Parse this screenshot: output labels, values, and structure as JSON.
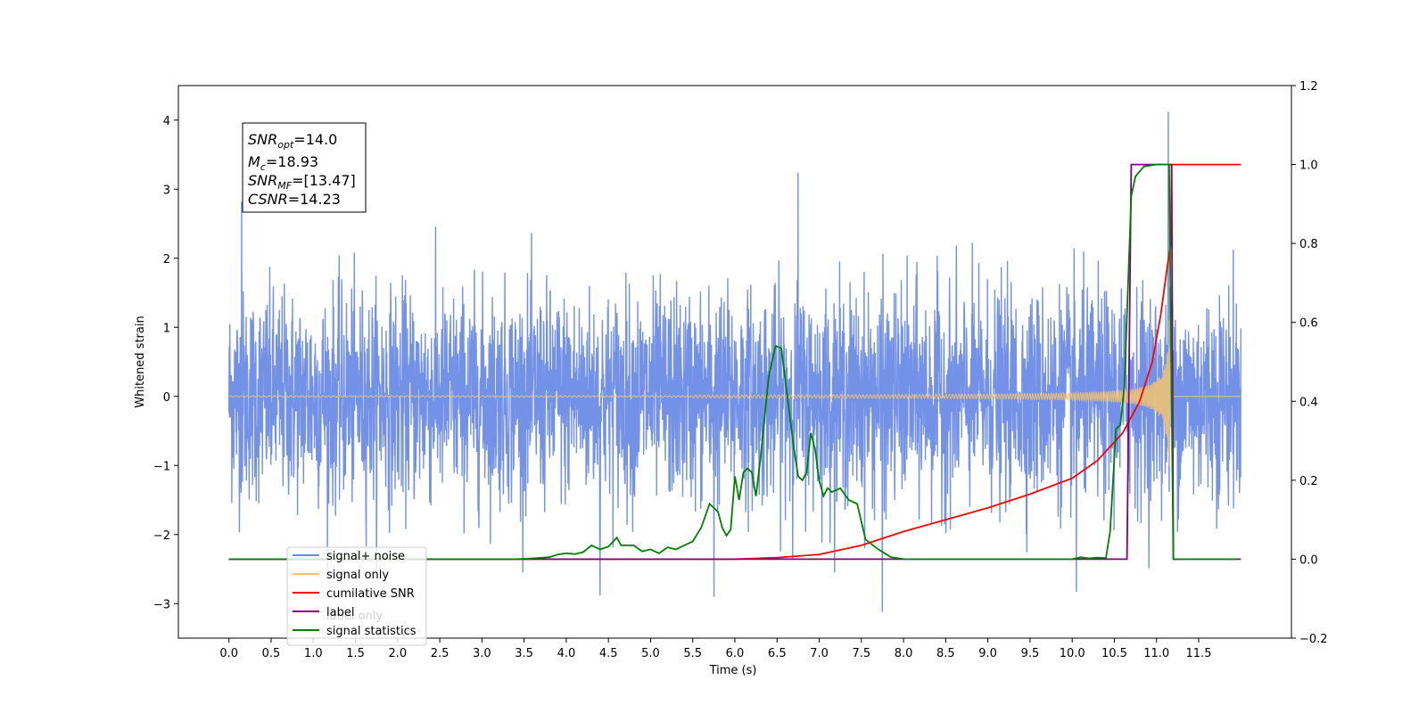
{
  "chart_data": {
    "type": "line",
    "title": "",
    "xlabel": "Time (s)",
    "ylabel": "Whitened strain",
    "xlim": [
      -0.6,
      12.6
    ],
    "ylim": [
      -3.5,
      4.5
    ],
    "y2lim": [
      -0.2,
      1.2
    ],
    "grid": false,
    "legend_position": "lower-left",
    "x_ticks": [
      "0.0",
      "0.5",
      "1.0",
      "1.5",
      "2.0",
      "2.5",
      "3.0",
      "3.5",
      "4.0",
      "4.5",
      "5.0",
      "5.5",
      "6.0",
      "6.5",
      "7.0",
      "7.5",
      "8.0",
      "8.5",
      "9.0",
      "9.5",
      "10.0",
      "10.5",
      "11.0",
      "11.5"
    ],
    "y_ticks": [
      "4",
      "3",
      "2",
      "1",
      "0",
      "−1",
      "−2",
      "−3"
    ],
    "y_tick_values": [
      4,
      3,
      2,
      1,
      0,
      -1,
      -2,
      -3
    ],
    "y2_ticks": [
      "1.2",
      "1.0",
      "0.8",
      "0.6",
      "0.4",
      "0.2",
      "0.0",
      "−0.2"
    ],
    "y2_tick_values": [
      1.2,
      1.0,
      0.8,
      0.6,
      0.4,
      0.2,
      0.0,
      -0.2
    ],
    "annotation": {
      "snr_opt": {
        "base": "SNR",
        "sub": "opt",
        "value": "=14.0"
      },
      "mc": {
        "base": "M",
        "sub": "c",
        "value": "=18.93"
      },
      "snr_mf": {
        "base": "SNR",
        "sub": "MF",
        "value": "=[13.47]"
      },
      "csnr": {
        "base": "CSNR",
        "sub": "",
        "value": "=14.23"
      }
    },
    "series": [
      {
        "name": "signal+ noise",
        "color": "#6b8ce6",
        "axis": "left",
        "noise_std": 0.75,
        "x_range": [
          0.0,
          12.0
        ],
        "peaks": [
          {
            "x": 0.15,
            "y": 2.82
          },
          {
            "x": 6.75,
            "y": 3.24
          },
          {
            "x": 11.14,
            "y": 4.12
          },
          {
            "x": 7.75,
            "y": -3.12
          },
          {
            "x": 4.4,
            "y": -2.88
          },
          {
            "x": 5.75,
            "y": -2.9
          },
          {
            "x": 10.05,
            "y": -2.83
          }
        ]
      },
      {
        "name": "signal only",
        "color": "#f5c470",
        "axis": "left",
        "description_values": {
          "chirp_end_s": 11.18,
          "peak_amplitude": 2.1
        }
      },
      {
        "name": "cumilative SNR",
        "color": "#ff0000",
        "axis": "right",
        "points": [
          [
            0.0,
            0.0
          ],
          [
            6.0,
            0.0
          ],
          [
            6.5,
            0.004
          ],
          [
            7.0,
            0.012
          ],
          [
            7.5,
            0.035
          ],
          [
            8.0,
            0.07
          ],
          [
            8.5,
            0.1
          ],
          [
            9.0,
            0.13
          ],
          [
            9.5,
            0.165
          ],
          [
            10.0,
            0.205
          ],
          [
            10.3,
            0.25
          ],
          [
            10.6,
            0.32
          ],
          [
            10.8,
            0.4
          ],
          [
            10.95,
            0.5
          ],
          [
            11.05,
            0.62
          ],
          [
            11.12,
            0.73
          ],
          [
            11.17,
            0.8
          ],
          [
            11.18,
            1.0
          ],
          [
            12.0,
            1.0
          ]
        ]
      },
      {
        "name": "label",
        "color": "#800080",
        "axis": "right",
        "points": [
          [
            0.0,
            0.0
          ],
          [
            10.65,
            0.0
          ],
          [
            10.7,
            1.0
          ],
          [
            11.18,
            1.0
          ],
          [
            11.2,
            0.0
          ],
          [
            12.0,
            0.0
          ]
        ]
      },
      {
        "name": "signal statistics",
        "color": "#008000",
        "axis": "right",
        "points": [
          [
            0.0,
            0.0
          ],
          [
            3.4,
            0.0
          ],
          [
            3.6,
            0.002
          ],
          [
            3.8,
            0.005
          ],
          [
            3.9,
            0.012
          ],
          [
            4.0,
            0.015
          ],
          [
            4.1,
            0.013
          ],
          [
            4.2,
            0.018
          ],
          [
            4.3,
            0.035
          ],
          [
            4.4,
            0.025
          ],
          [
            4.5,
            0.032
          ],
          [
            4.6,
            0.055
          ],
          [
            4.65,
            0.035
          ],
          [
            4.8,
            0.035
          ],
          [
            4.9,
            0.02
          ],
          [
            5.0,
            0.025
          ],
          [
            5.1,
            0.015
          ],
          [
            5.2,
            0.03
          ],
          [
            5.3,
            0.025
          ],
          [
            5.45,
            0.04
          ],
          [
            5.5,
            0.045
          ],
          [
            5.6,
            0.08
          ],
          [
            5.7,
            0.14
          ],
          [
            5.8,
            0.12
          ],
          [
            5.85,
            0.08
          ],
          [
            5.9,
            0.06
          ],
          [
            5.95,
            0.075
          ],
          [
            6.0,
            0.21
          ],
          [
            6.05,
            0.15
          ],
          [
            6.1,
            0.22
          ],
          [
            6.15,
            0.23
          ],
          [
            6.2,
            0.22
          ],
          [
            6.25,
            0.16
          ],
          [
            6.3,
            0.25
          ],
          [
            6.4,
            0.46
          ],
          [
            6.48,
            0.54
          ],
          [
            6.55,
            0.535
          ],
          [
            6.6,
            0.45
          ],
          [
            6.7,
            0.28
          ],
          [
            6.75,
            0.21
          ],
          [
            6.8,
            0.2
          ],
          [
            6.85,
            0.22
          ],
          [
            6.9,
            0.32
          ],
          [
            6.95,
            0.28
          ],
          [
            7.0,
            0.2
          ],
          [
            7.05,
            0.16
          ],
          [
            7.1,
            0.18
          ],
          [
            7.15,
            0.17
          ],
          [
            7.25,
            0.18
          ],
          [
            7.35,
            0.15
          ],
          [
            7.45,
            0.14
          ],
          [
            7.55,
            0.05
          ],
          [
            7.7,
            0.025
          ],
          [
            7.85,
            0.005
          ],
          [
            8.0,
            0.0
          ],
          [
            10.0,
            0.0
          ],
          [
            10.1,
            0.005
          ],
          [
            10.2,
            0.002
          ],
          [
            10.3,
            0.004
          ],
          [
            10.4,
            0.003
          ],
          [
            10.45,
            0.07
          ],
          [
            10.52,
            0.33
          ],
          [
            10.57,
            0.34
          ],
          [
            10.62,
            0.44
          ],
          [
            10.65,
            0.62
          ],
          [
            10.7,
            0.92
          ],
          [
            10.75,
            0.97
          ],
          [
            10.85,
            0.995
          ],
          [
            11.0,
            1.0
          ],
          [
            11.15,
            1.0
          ],
          [
            11.2,
            0.0
          ],
          [
            11.95,
            0.0
          ]
        ]
      }
    ]
  },
  "legend": {
    "items": [
      {
        "label": "signal+ noise",
        "color": "#6b8ce6"
      },
      {
        "label": "signal only",
        "color": "#f5c470"
      },
      {
        "label": "cumilative SNR",
        "color": "#ff0000"
      },
      {
        "label": "label",
        "color": "#800080"
      },
      {
        "label": "signal statistics",
        "color": "#008000"
      }
    ],
    "occluded_label": "label only"
  }
}
